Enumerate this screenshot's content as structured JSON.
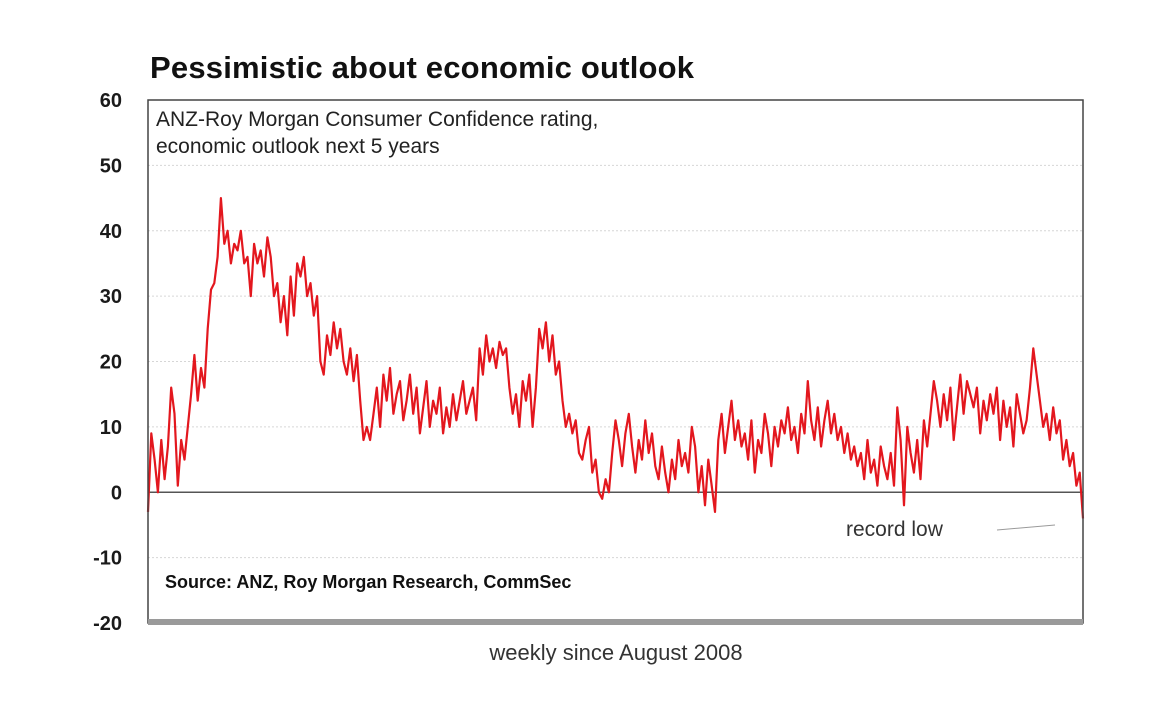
{
  "chart_data": {
    "type": "line",
    "title": "Pessimistic about economic outlook",
    "subtitle_lines": [
      "ANZ-Roy Morgan Consumer Confidence rating,",
      "economic outlook next 5 years"
    ],
    "source": "Source: ANZ, Roy Morgan Research, CommSec",
    "xlabel": "weekly since August 2008",
    "ylabel": "",
    "ylim": [
      -20,
      60
    ],
    "yticks": [
      60,
      50,
      40,
      30,
      20,
      10,
      0,
      -10,
      -20
    ],
    "grid": true,
    "annotation": "record low",
    "series": [
      {
        "color": "#e3171e",
        "values": [
          -3,
          9,
          5,
          0,
          8,
          2,
          7,
          16,
          12,
          1,
          8,
          5,
          10,
          15,
          21,
          14,
          19,
          16,
          25,
          31,
          32,
          36,
          45,
          38,
          40,
          35,
          38,
          37,
          40,
          35,
          36,
          30,
          38,
          35,
          37,
          33,
          39,
          36,
          30,
          32,
          26,
          30,
          24,
          33,
          27,
          35,
          33,
          36,
          30,
          32,
          27,
          30,
          20,
          18,
          24,
          21,
          26,
          22,
          25,
          20,
          18,
          22,
          17,
          21,
          14,
          8,
          10,
          8,
          12,
          16,
          10,
          18,
          14,
          19,
          12,
          15,
          17,
          11,
          14,
          18,
          12,
          16,
          9,
          13,
          17,
          10,
          14,
          12,
          16,
          9,
          13,
          10,
          15,
          11,
          14,
          17,
          12,
          14,
          16,
          11,
          22,
          18,
          24,
          20,
          22,
          19,
          23,
          21,
          22,
          16,
          12,
          15,
          10,
          17,
          14,
          18,
          10,
          16,
          25,
          22,
          26,
          20,
          24,
          18,
          20,
          14,
          10,
          12,
          9,
          11,
          6,
          5,
          8,
          10,
          3,
          5,
          0,
          -1,
          2,
          0,
          6,
          11,
          8,
          4,
          9,
          12,
          7,
          3,
          8,
          5,
          11,
          6,
          9,
          4,
          2,
          7,
          3,
          0,
          5,
          2,
          8,
          4,
          6,
          3,
          10,
          7,
          0,
          4,
          -2,
          5,
          1,
          -3,
          8,
          12,
          6,
          10,
          14,
          8,
          11,
          7,
          9,
          5,
          11,
          3,
          8,
          6,
          12,
          9,
          4,
          10,
          7,
          11,
          9,
          13,
          8,
          10,
          6,
          12,
          9,
          17,
          11,
          8,
          13,
          7,
          11,
          14,
          9,
          12,
          8,
          10,
          6,
          9,
          5,
          7,
          4,
          6,
          2,
          8,
          3,
          5,
          1,
          7,
          4,
          2,
          6,
          1,
          13,
          8,
          -2,
          10,
          6,
          3,
          8,
          2,
          11,
          7,
          12,
          17,
          14,
          10,
          15,
          11,
          16,
          8,
          13,
          18,
          12,
          17,
          15,
          13,
          16,
          9,
          14,
          11,
          15,
          12,
          16,
          8,
          14,
          10,
          13,
          7,
          15,
          12,
          9,
          11,
          16,
          22,
          18,
          14,
          10,
          12,
          8,
          13,
          9,
          11,
          5,
          8,
          4,
          6,
          1,
          3,
          -4
        ]
      }
    ]
  }
}
